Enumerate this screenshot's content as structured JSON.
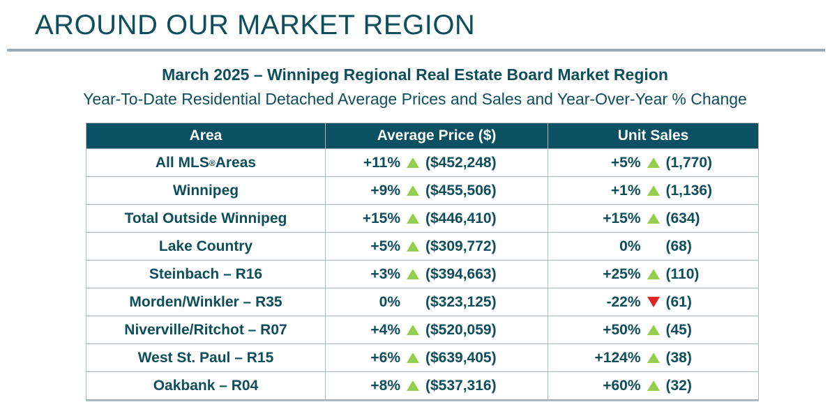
{
  "page": {
    "title": "AROUND OUR MARKET REGION",
    "subtitle_bold": "March 2025 – Winnipeg Regional Real Estate Board Market Region",
    "subtitle": "Year-To-Date Residential Detached Average Prices and Sales and Year-Over-Year % Change"
  },
  "colors": {
    "teal": "#0d4e5d",
    "teal-bg": "#0b5161",
    "grid": "#a6b8c1",
    "divider": "#9dacb4",
    "green": "#92d050",
    "red": "#e02424"
  },
  "table": {
    "headers": [
      "Area",
      "Average Price ($)",
      "Unit Sales"
    ],
    "rows": [
      {
        "area_pre": "All MLS",
        "area_sup": "®",
        "area_post": " Areas",
        "price_pct": "+11%",
        "price_dir": "up",
        "price_value": "($452,248)",
        "sales_pct": "+5%",
        "sales_dir": "up",
        "sales_value": "(1,770)"
      },
      {
        "area_pre": "Winnipeg",
        "area_sup": "",
        "area_post": "",
        "price_pct": "+9%",
        "price_dir": "up",
        "price_value": "($455,506)",
        "sales_pct": "+1%",
        "sales_dir": "up",
        "sales_value": "(1,136)"
      },
      {
        "area_pre": "Total Outside Winnipeg",
        "area_sup": "",
        "area_post": "",
        "price_pct": "+15%",
        "price_dir": "up",
        "price_value": "($446,410)",
        "sales_pct": "+15%",
        "sales_dir": "up",
        "sales_value": "(634)"
      },
      {
        "area_pre": "Lake Country",
        "area_sup": "",
        "area_post": "",
        "price_pct": "+5%",
        "price_dir": "up",
        "price_value": "($309,772)",
        "sales_pct": "0%",
        "sales_dir": "none",
        "sales_value": "(68)"
      },
      {
        "area_pre": "Steinbach – R16",
        "area_sup": "",
        "area_post": "",
        "price_pct": "+3%",
        "price_dir": "up",
        "price_value": "($394,663)",
        "sales_pct": "+25%",
        "sales_dir": "up",
        "sales_value": "(110)"
      },
      {
        "area_pre": "Morden/Winkler – R35",
        "area_sup": "",
        "area_post": "",
        "price_pct": "0%",
        "price_dir": "none",
        "price_value": "($323,125)",
        "sales_pct": "-22%",
        "sales_dir": "down",
        "sales_value": "(61)"
      },
      {
        "area_pre": "Niverville/Ritchot – R07",
        "area_sup": "",
        "area_post": "",
        "price_pct": "+4%",
        "price_dir": "up",
        "price_value": "($520,059)",
        "sales_pct": "+50%",
        "sales_dir": "up",
        "sales_value": "(45)"
      },
      {
        "area_pre": "West St. Paul – R15",
        "area_sup": "",
        "area_post": "",
        "price_pct": "+6%",
        "price_dir": "up",
        "price_value": "($639,405)",
        "sales_pct": "+124%",
        "sales_dir": "up",
        "sales_value": "(38)"
      },
      {
        "area_pre": "Oakbank – R04",
        "area_sup": "",
        "area_post": "",
        "price_pct": "+8%",
        "price_dir": "up",
        "price_value": "($537,316)",
        "sales_pct": "+60%",
        "sales_dir": "up",
        "sales_value": "(32)"
      }
    ]
  },
  "chart_data": {
    "type": "table",
    "title": "March 2025 – Winnipeg Regional Real Estate Board Market Region",
    "subtitle": "Year-To-Date Residential Detached Average Prices and Sales and Year-Over-Year % Change",
    "columns": [
      "Area",
      "Average Price YoY %",
      "Average Price ($)",
      "Unit Sales YoY %",
      "Unit Sales"
    ],
    "rows": [
      {
        "area": "All MLS® Areas",
        "avg_price_yoy_pct": 11,
        "avg_price": 452248,
        "unit_sales_yoy_pct": 5,
        "unit_sales": 1770
      },
      {
        "area": "Winnipeg",
        "avg_price_yoy_pct": 9,
        "avg_price": 455506,
        "unit_sales_yoy_pct": 1,
        "unit_sales": 1136
      },
      {
        "area": "Total Outside Winnipeg",
        "avg_price_yoy_pct": 15,
        "avg_price": 446410,
        "unit_sales_yoy_pct": 15,
        "unit_sales": 634
      },
      {
        "area": "Lake Country",
        "avg_price_yoy_pct": 5,
        "avg_price": 309772,
        "unit_sales_yoy_pct": 0,
        "unit_sales": 68
      },
      {
        "area": "Steinbach – R16",
        "avg_price_yoy_pct": 3,
        "avg_price": 394663,
        "unit_sales_yoy_pct": 25,
        "unit_sales": 110
      },
      {
        "area": "Morden/Winkler – R35",
        "avg_price_yoy_pct": 0,
        "avg_price": 323125,
        "unit_sales_yoy_pct": -22,
        "unit_sales": 61
      },
      {
        "area": "Niverville/Ritchot – R07",
        "avg_price_yoy_pct": 4,
        "avg_price": 520059,
        "unit_sales_yoy_pct": 50,
        "unit_sales": 45
      },
      {
        "area": "West St. Paul – R15",
        "avg_price_yoy_pct": 6,
        "avg_price": 639405,
        "unit_sales_yoy_pct": 124,
        "unit_sales": 38
      },
      {
        "area": "Oakbank – R04",
        "avg_price_yoy_pct": 8,
        "avg_price": 537316,
        "unit_sales_yoy_pct": 60,
        "unit_sales": 32
      }
    ]
  }
}
